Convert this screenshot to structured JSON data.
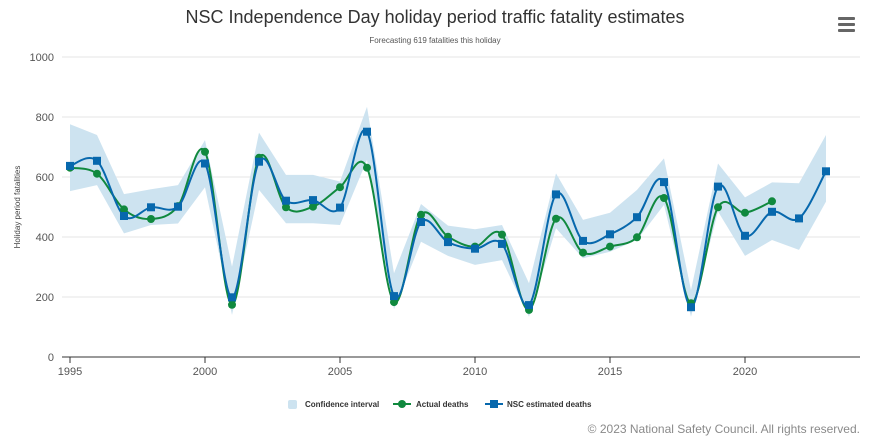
{
  "header": {
    "title": "NSC Independence Day holiday period traffic fatality estimates",
    "subtitle": "Forecasting 619 fatalities this holiday",
    "menu_icon": "hamburger-menu-icon"
  },
  "footer": {
    "copyright": "© 2023 National Safety Council. All rights reserved."
  },
  "colors": {
    "estimated": "#0768ad",
    "actual": "#10893e",
    "confidence": "#cde3f0",
    "grid": "#e6e6e6",
    "axis": "#333333"
  },
  "chart_data": {
    "type": "line",
    "title": "NSC Independence Day holiday period traffic fatality estimates",
    "subtitle": "Forecasting 619 fatalities this holiday",
    "xlabel": "",
    "ylabel": "Holiday period fatalities",
    "ylim": [
      0,
      1000
    ],
    "xlim": [
      1995,
      2023
    ],
    "yticks": [
      0,
      200,
      400,
      600,
      800,
      1000
    ],
    "xticks": [
      1995,
      2000,
      2005,
      2010,
      2015,
      2020
    ],
    "grid": true,
    "legend_position": "bottom-center",
    "x": [
      1995,
      1996,
      1997,
      1998,
      1999,
      2000,
      2001,
      2002,
      2003,
      2004,
      2005,
      2006,
      2007,
      2008,
      2009,
      2010,
      2011,
      2012,
      2013,
      2014,
      2015,
      2016,
      2017,
      2018,
      2019,
      2020,
      2021,
      2022,
      2023
    ],
    "series": [
      {
        "name": "Confidence interval",
        "type": "arearange",
        "low": [
          553,
          573,
          412,
          440,
          445,
          566,
          140,
          557,
          446,
          446,
          440,
          657,
          159,
          384,
          337,
          307,
          323,
          134,
          429,
          329,
          351,
          390,
          507,
          134,
          485,
          337,
          390,
          357,
          518
        ],
        "high": [
          776,
          740,
          543,
          559,
          573,
          723,
          301,
          748,
          607,
          607,
          585,
          834,
          279,
          510,
          438,
          426,
          440,
          246,
          612,
          457,
          481,
          557,
          662,
          223,
          645,
          532,
          582,
          579,
          740
        ]
      },
      {
        "name": "Actual deaths",
        "type": "spline",
        "marker": "circle",
        "values": [
          631,
          611,
          492,
          460,
          503,
          684,
          174,
          664,
          499,
          501,
          566,
          631,
          183,
          474,
          401,
          368,
          408,
          157,
          461,
          348,
          368,
          399,
          530,
          179,
          499,
          481,
          519,
          null,
          null
        ]
      },
      {
        "name": "NSC estimated deaths",
        "type": "spline",
        "marker": "square",
        "values": [
          637,
          654,
          470,
          499,
          501,
          645,
          199,
          651,
          521,
          523,
          498,
          751,
          203,
          450,
          383,
          361,
          377,
          173,
          542,
          387,
          409,
          466,
          583,
          166,
          568,
          404,
          484,
          462,
          619
        ]
      }
    ]
  }
}
